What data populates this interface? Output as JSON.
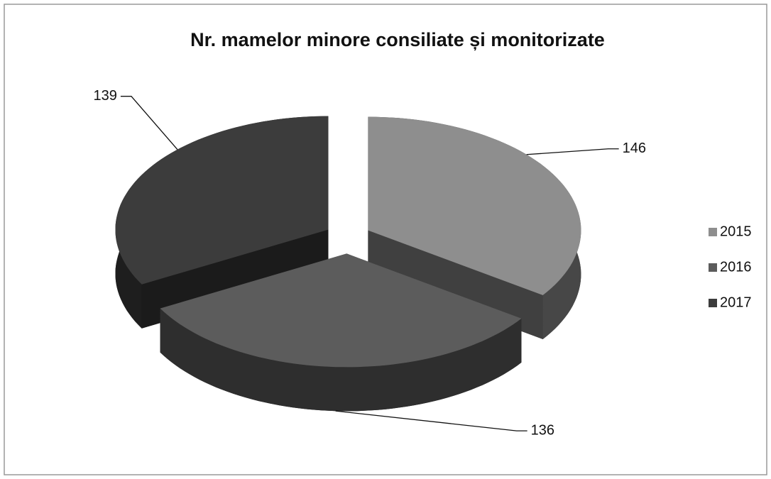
{
  "chart_data": {
    "type": "pie",
    "title": "Nr. mamelor minore consiliate și monitorizate",
    "categories": [
      "2015",
      "2016",
      "2017"
    ],
    "values": [
      146,
      136,
      139
    ],
    "colors": [
      "#8e8e8e",
      "#5c5c5c",
      "#3c3c3c"
    ],
    "legend": "right"
  }
}
